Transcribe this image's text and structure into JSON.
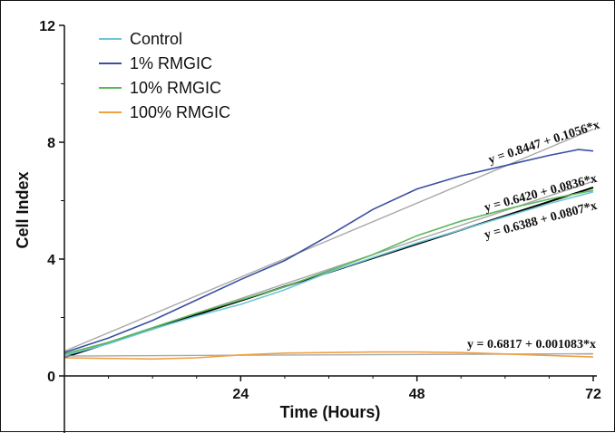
{
  "chart_data": {
    "type": "line",
    "xlabel": "Time (Hours)",
    "ylabel": "Cell Index",
    "xlim": [
      0,
      72
    ],
    "ylim": [
      0,
      12
    ],
    "x_ticks": [
      24,
      48,
      72
    ],
    "y_ticks": [
      0,
      4,
      8,
      12
    ],
    "legend_position": "top-left",
    "series": [
      {
        "name": "Control",
        "color": "#6ec6d8",
        "x": [
          0,
          6,
          12,
          18,
          24,
          30,
          36,
          42,
          48,
          54,
          60,
          66,
          72
        ],
        "y": [
          0.7,
          1.1,
          1.6,
          2.05,
          2.45,
          2.95,
          3.55,
          4.05,
          4.55,
          5.0,
          5.45,
          5.9,
          6.3
        ]
      },
      {
        "name": "1% RMGIC",
        "color": "#3a4fa0",
        "x": [
          0,
          6,
          12,
          18,
          24,
          30,
          36,
          42,
          48,
          54,
          60,
          66,
          70,
          72
        ],
        "y": [
          0.8,
          1.3,
          1.9,
          2.6,
          3.3,
          3.95,
          4.8,
          5.7,
          6.4,
          6.85,
          7.2,
          7.55,
          7.75,
          7.7
        ]
      },
      {
        "name": "10% RMGIC",
        "color": "#5cb85c",
        "x": [
          0,
          6,
          12,
          18,
          24,
          30,
          36,
          42,
          48,
          54,
          60,
          66,
          72
        ],
        "y": [
          0.75,
          1.15,
          1.65,
          2.15,
          2.6,
          3.05,
          3.6,
          4.15,
          4.8,
          5.3,
          5.7,
          6.05,
          6.35
        ]
      },
      {
        "name": "100% RMGIC",
        "color": "#f0a040",
        "x": [
          0,
          6,
          12,
          18,
          24,
          30,
          36,
          42,
          48,
          54,
          60,
          66,
          72
        ],
        "y": [
          0.62,
          0.6,
          0.58,
          0.62,
          0.72,
          0.78,
          0.8,
          0.82,
          0.82,
          0.8,
          0.75,
          0.7,
          0.65
        ]
      }
    ],
    "fits": [
      {
        "equation": "y = 0.8447 + 0.1056*x",
        "intercept": 0.8447,
        "slope": 0.1056,
        "color": "#a8a8a8"
      },
      {
        "equation": "y = 0.6420 + 0.0836*x",
        "intercept": 0.642,
        "slope": 0.0836,
        "color": "#a8a8a8"
      },
      {
        "equation": "y = 0.6388 + 0.0807*x",
        "intercept": 0.6388,
        "slope": 0.0807,
        "color": "#000000"
      },
      {
        "equation": "y = 0.6817 + 0.001083*x",
        "intercept": 0.6817,
        "slope": 0.001083,
        "color": "#a8a8a8"
      }
    ]
  }
}
